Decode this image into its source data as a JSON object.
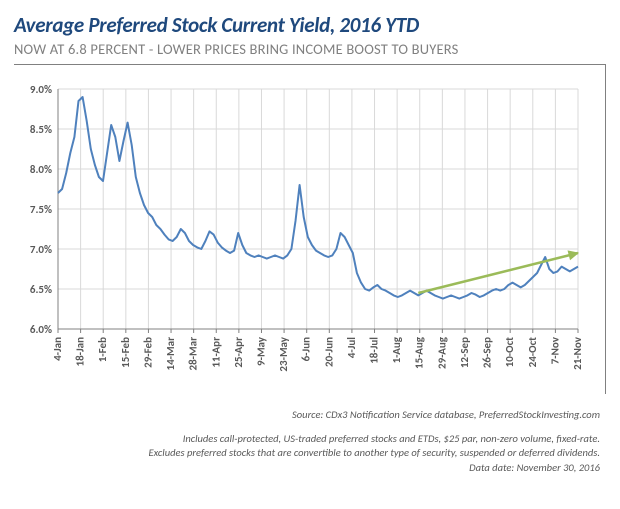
{
  "title": "Average Preferred Stock Current Yield, 2016 YTD",
  "subtitle": "NOW AT 6.8 PERCENT - LOWER PRICES BRING INCOME BOOST TO BUYERS",
  "chart": {
    "type": "line",
    "background_color": "#ffffff",
    "border_color": "#808080",
    "grid_color": "#d9d9d9",
    "axis_color": "#808080",
    "tick_label_color": "#595959",
    "tick_label_fontsize": 11,
    "tick_label_fontweight": "bold",
    "ylim": [
      6.0,
      9.0
    ],
    "ytick_step": 0.5,
    "yticks": [
      "6.0%",
      "6.5%",
      "7.0%",
      "7.5%",
      "8.0%",
      "8.5%",
      "9.0%"
    ],
    "xticks": [
      "4-Jan",
      "18-Jan",
      "1-Feb",
      "15-Feb",
      "29-Feb",
      "14-Mar",
      "28-Mar",
      "11-Apr",
      "25-Apr",
      "9-May",
      "23-May",
      "6-Jun",
      "20-Jun",
      "4-Jul",
      "18-Jul",
      "1-Aug",
      "15-Aug",
      "29-Aug",
      "12-Sep",
      "26-Sep",
      "10-Oct",
      "24-Oct",
      "7-Nov",
      "21-Nov"
    ],
    "series": {
      "color": "#4f81bd",
      "line_width": 2,
      "data": [
        7.7,
        7.75,
        7.95,
        8.2,
        8.4,
        8.85,
        8.9,
        8.6,
        8.25,
        8.05,
        7.9,
        7.85,
        8.2,
        8.55,
        8.4,
        8.1,
        8.35,
        8.58,
        8.3,
        7.9,
        7.7,
        7.55,
        7.45,
        7.4,
        7.3,
        7.25,
        7.18,
        7.12,
        7.1,
        7.15,
        7.25,
        7.2,
        7.1,
        7.05,
        7.02,
        7.0,
        7.1,
        7.22,
        7.18,
        7.08,
        7.02,
        6.98,
        6.95,
        6.98,
        7.2,
        7.05,
        6.95,
        6.92,
        6.9,
        6.92,
        6.9,
        6.88,
        6.9,
        6.92,
        6.9,
        6.88,
        6.92,
        7.0,
        7.35,
        7.8,
        7.4,
        7.15,
        7.05,
        6.98,
        6.95,
        6.92,
        6.9,
        6.92,
        7.0,
        7.2,
        7.15,
        7.05,
        6.95,
        6.7,
        6.58,
        6.5,
        6.48,
        6.52,
        6.55,
        6.5,
        6.48,
        6.45,
        6.42,
        6.4,
        6.42,
        6.45,
        6.48,
        6.45,
        6.42,
        6.45,
        6.48,
        6.45,
        6.42,
        6.4,
        6.38,
        6.4,
        6.42,
        6.4,
        6.38,
        6.4,
        6.42,
        6.45,
        6.43,
        6.4,
        6.42,
        6.45,
        6.48,
        6.5,
        6.48,
        6.5,
        6.55,
        6.58,
        6.55,
        6.52,
        6.55,
        6.6,
        6.65,
        6.7,
        6.8,
        6.9,
        6.75,
        6.7,
        6.72,
        6.78,
        6.75,
        6.72,
        6.75,
        6.78
      ]
    },
    "arrow": {
      "color": "#9bbb59",
      "line_width": 2.5,
      "start_index": 88,
      "start_value": 6.45,
      "end_index": 127,
      "end_value": 6.95
    }
  },
  "footnotes": {
    "source": "Source: CDx3 Notification Service database, PreferredStockInvesting.com",
    "line1": "Includes call-protected, US-traded preferred stocks and ETDs, $25 par, non-zero volume, fixed-rate.",
    "line2": "Excludes preferred stocks that are convertible to another type of security, suspended or deferred dividends.",
    "line3": "Data date: November 30, 2016"
  }
}
